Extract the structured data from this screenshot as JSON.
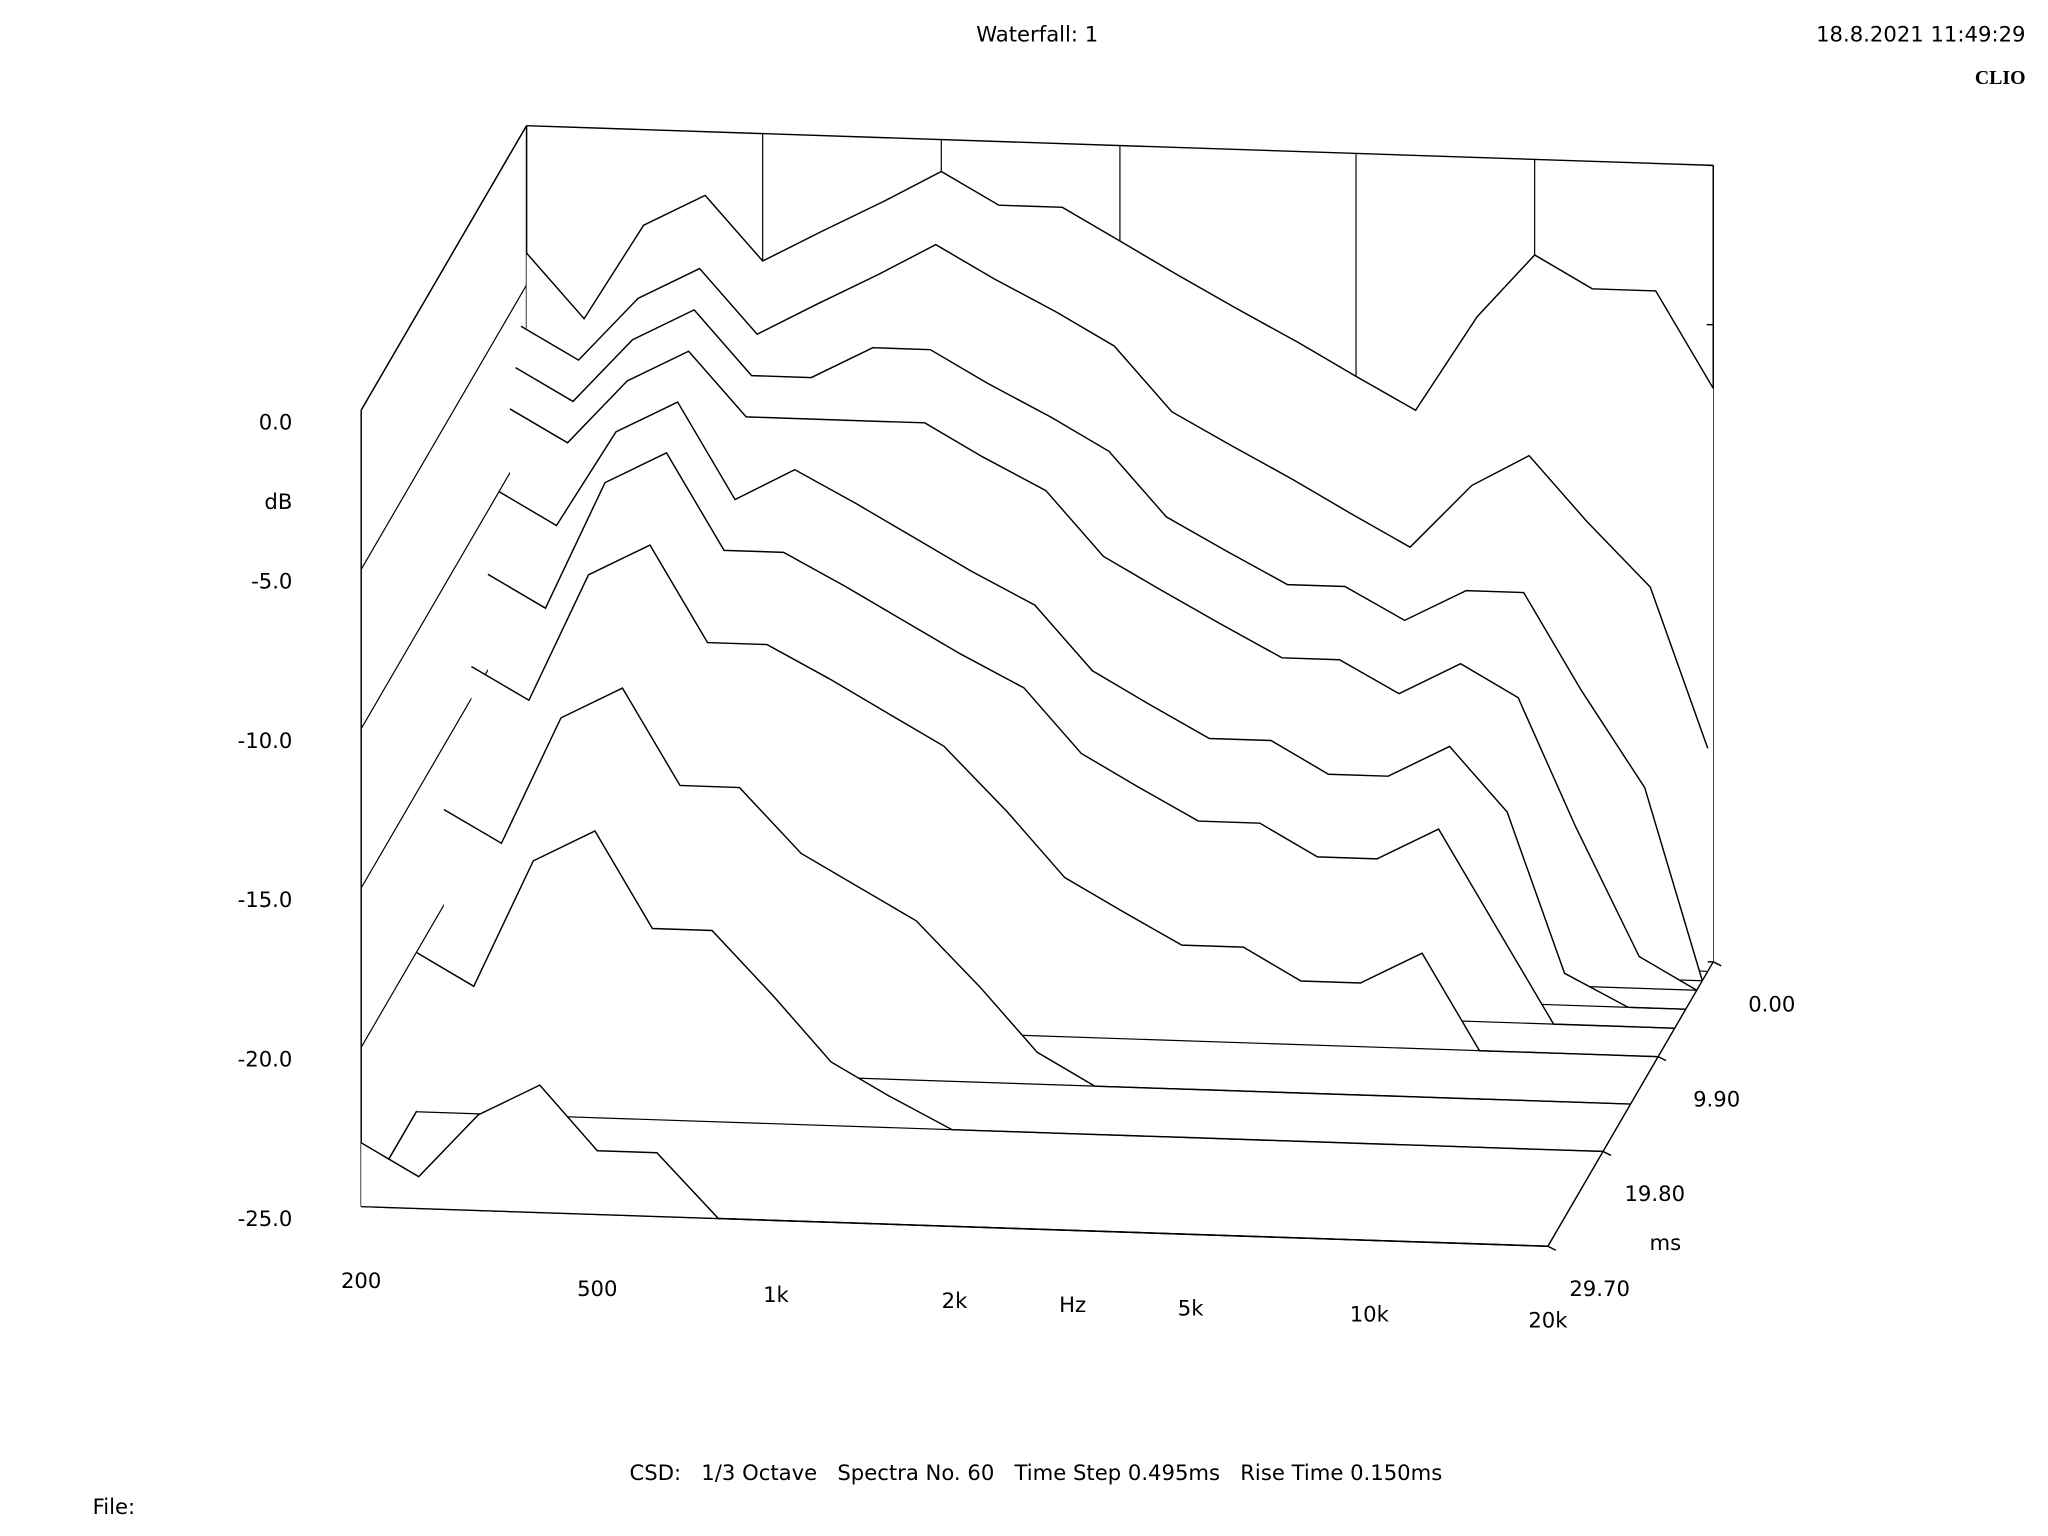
{
  "chart_data": {
    "type": "waterfall",
    "title": "Waterfall: 1",
    "timestamp": "18.8.2021 11:49:29",
    "brand": "CLIO",
    "footer": "CSD:   1/3 Octave   Spectra No. 60   Time Step 0.495ms   Rise Time 0.150ms",
    "file_label": "File:",
    "xlabel": "Hz",
    "ylabel": "dB",
    "zlabel": "ms",
    "xscale": "log",
    "xlim": [
      200,
      20000
    ],
    "ylim": [
      -25,
      0
    ],
    "zlim": [
      0,
      29.7
    ],
    "xticks": [
      200,
      500,
      {
        "value": 1000,
        "label": "1k"
      },
      {
        "value": 2000,
        "label": "2k"
      },
      {
        "value": 5000,
        "label": "5k"
      },
      {
        "value": 10000,
        "label": "10k"
      },
      {
        "value": 20000,
        "label": "20k"
      }
    ],
    "yticks": [
      {
        "value": 0,
        "label": "0.0"
      },
      {
        "value": -5,
        "label": "-5.0"
      },
      {
        "value": -10,
        "label": "-10.0"
      },
      {
        "value": -15,
        "label": "-15.0"
      },
      {
        "value": -20,
        "label": "-20.0"
      },
      {
        "value": -25,
        "label": "-25.0"
      }
    ],
    "zticks": [
      {
        "value": 0,
        "label": "0.00"
      },
      {
        "value": 9.9,
        "label": "9.90"
      },
      {
        "value": 19.8,
        "label": "19.80"
      },
      {
        "value": 29.7,
        "label": "29.70"
      }
    ],
    "color": "#000000",
    "x": [
      200,
      250,
      315,
      400,
      500,
      630,
      800,
      1000,
      1250,
      1600,
      2000,
      2500,
      3150,
      4000,
      5000,
      6300,
      8000,
      10000,
      12500,
      16000,
      20000
    ],
    "z": [
      0,
      0.99,
      1.98,
      2.97,
      4.95,
      6.93,
      9.9,
      14.85,
      19.8,
      29.7
    ],
    "values": [
      [
        -4,
        -6,
        -3,
        -2,
        -4,
        -3,
        -2,
        -1,
        -2,
        -2,
        -3,
        -4,
        -5,
        -6,
        -7,
        -8,
        -5,
        -3,
        -4,
        -4,
        -7
      ],
      [
        -6,
        -7,
        -5,
        -4,
        -6,
        -5,
        -4,
        -3,
        -4,
        -5,
        -6,
        -8,
        -9,
        -10,
        -11,
        -12,
        -10,
        -9,
        -11,
        -13,
        -18
      ],
      [
        -7,
        -8,
        -6,
        -5,
        -7,
        -7,
        -6,
        -6,
        -7,
        -8,
        -9,
        -11,
        -12,
        -13,
        -13,
        -14,
        -13,
        -13,
        -16,
        -19,
        -25
      ],
      [
        -8,
        -9,
        -7,
        -6,
        -8,
        -8,
        -8,
        -8,
        -9,
        -10,
        -12,
        -13,
        -14,
        -15,
        -15,
        -16,
        -15,
        -16,
        -20,
        -24,
        -25
      ],
      [
        -10,
        -11,
        -8,
        -7,
        -10,
        -9,
        -10,
        -11,
        -12,
        -13,
        -15,
        -16,
        -17,
        -17,
        -18,
        -18,
        -17,
        -19,
        -24,
        -25,
        -25
      ],
      [
        -12,
        -13,
        -9,
        -8,
        -11,
        -11,
        -12,
        -13,
        -14,
        -15,
        -17,
        -18,
        -19,
        -19,
        -20,
        -20,
        -19,
        -22,
        -25,
        -25,
        -25
      ],
      [
        -14,
        -15,
        -11,
        -10,
        -13,
        -13,
        -14,
        -15,
        -16,
        -18,
        -20,
        -21,
        -22,
        -22,
        -23,
        -23,
        -22,
        -25,
        -25,
        -25,
        -25
      ],
      [
        -17,
        -18,
        -14,
        -13,
        -16,
        -16,
        -18,
        -19,
        -20,
        -22,
        -24,
        -25,
        -25,
        -25,
        -25,
        -25,
        -25,
        -25,
        -25,
        -25,
        -25
      ],
      [
        -20,
        -21,
        -17,
        -16,
        -19,
        -19,
        -21,
        -23,
        -24,
        -25,
        -25,
        -25,
        -25,
        -25,
        -25,
        -25,
        -25,
        -25,
        -25,
        -25,
        -25
      ],
      [
        -23,
        -24,
        -22,
        -21,
        -23,
        -23,
        -25,
        -25,
        -25,
        -25,
        -25,
        -25,
        -25,
        -25,
        -25,
        -25,
        -25,
        -25,
        -25,
        -25,
        -25
      ]
    ]
  }
}
